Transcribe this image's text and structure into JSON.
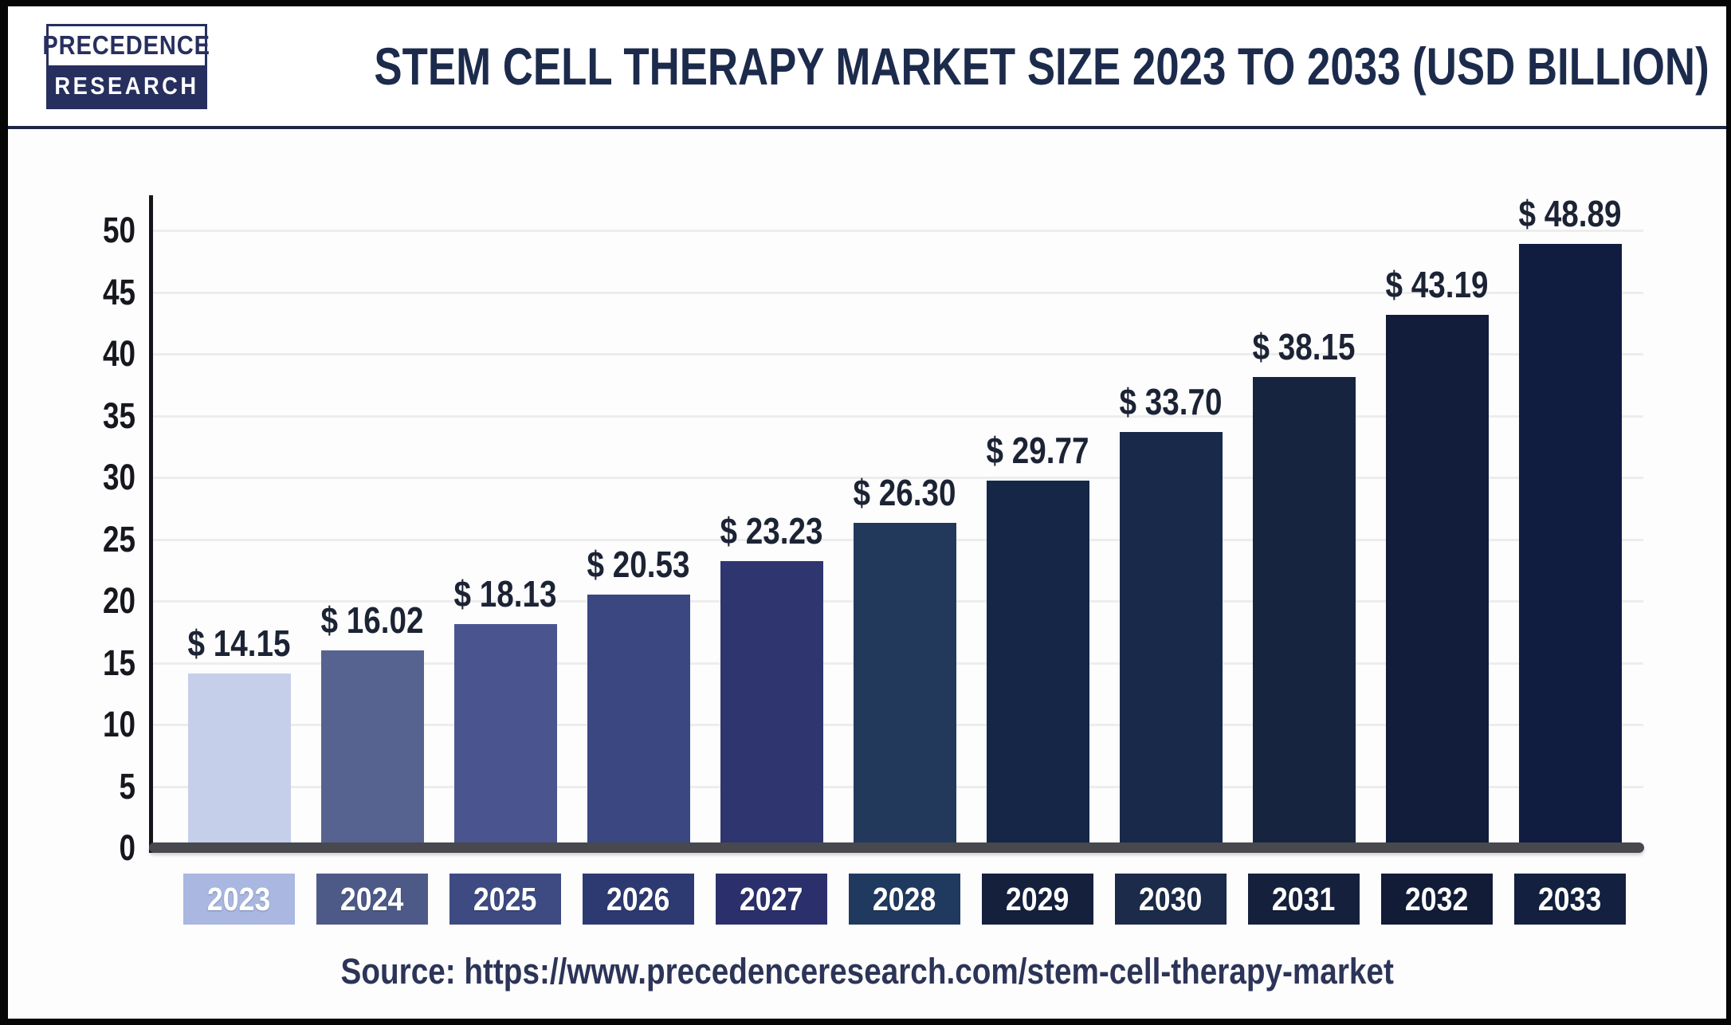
{
  "header": {
    "logo": {
      "line1": "PRECEDENCE",
      "line2": "RESEARCH"
    },
    "title": "STEM CELL THERAPY MARKET SIZE 2023 TO 2033 (USD BILLION)"
  },
  "chart_data": {
    "type": "bar",
    "title": "STEM CELL THERAPY MARKET SIZE 2023 TO 2033 (USD BILLION)",
    "unit": "USD Billion",
    "categories": [
      "2023",
      "2024",
      "2025",
      "2026",
      "2027",
      "2028",
      "2029",
      "2030",
      "2031",
      "2032",
      "2033"
    ],
    "values": [
      14.15,
      16.02,
      18.13,
      20.53,
      23.23,
      26.3,
      29.77,
      33.7,
      38.15,
      43.19,
      48.89
    ],
    "value_labels": [
      "$ 14.15",
      "$ 16.02",
      "$ 18.13",
      "$ 20.53",
      "$ 23.23",
      "$ 26.30",
      "$ 29.77",
      "$ 33.70",
      "$ 38.15",
      "$ 43.19",
      "$ 48.89"
    ],
    "bar_colors": [
      "#c6cfe9",
      "#566390",
      "#4a5590",
      "#3a4781",
      "#2f356f",
      "#22395c",
      "#152647",
      "#18294a",
      "#17243f",
      "#111d3a",
      "#101d40"
    ],
    "category_box_colors": [
      "#a9b7e1",
      "#4d5a87",
      "#3e4a82",
      "#2d3a72",
      "#2b306c",
      "#1f3a5e",
      "#15203d",
      "#1b2b49",
      "#15213c",
      "#121c37",
      "#13203f"
    ],
    "xlabel": "",
    "ylabel": "",
    "ylim": [
      0,
      50
    ],
    "yticks": [
      0,
      5,
      10,
      15,
      20,
      25,
      30,
      35,
      40,
      45,
      50
    ],
    "grid": true,
    "gridline_color": "#ededed",
    "legend": "none"
  },
  "footer": {
    "source": "Source: https://www.precedenceresearch.com/stem-cell-therapy-market"
  }
}
